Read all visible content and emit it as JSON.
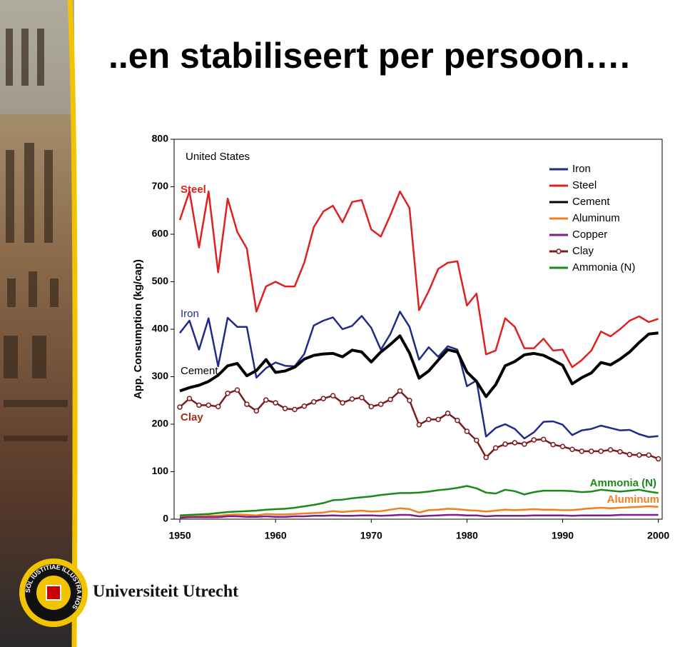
{
  "header": {
    "title": "..en stabiliseert per persoon…."
  },
  "logo": {
    "name": "Universiteit Utrecht",
    "seal_text": "SOL IUSTITIAE ILLUSTRA NOS"
  },
  "chart_data": {
    "type": "line",
    "ylabel": "App. Consumption (kg/cap)",
    "x": [
      1950,
      1951,
      1952,
      1953,
      1954,
      1955,
      1956,
      1957,
      1958,
      1959,
      1960,
      1961,
      1962,
      1963,
      1964,
      1965,
      1966,
      1967,
      1968,
      1969,
      1970,
      1971,
      1972,
      1973,
      1974,
      1975,
      1976,
      1977,
      1978,
      1979,
      1980,
      1981,
      1982,
      1983,
      1984,
      1985,
      1986,
      1987,
      1988,
      1989,
      1990,
      1991,
      1992,
      1993,
      1994,
      1995,
      1996,
      1997,
      1998,
      1999,
      2000
    ],
    "xlim": [
      1949.4,
      2000.4
    ],
    "xticks": [
      1950,
      1960,
      1970,
      1980,
      1990,
      2000
    ],
    "ylim": [
      0,
      800
    ],
    "yticks": [
      0,
      100,
      200,
      300,
      400,
      500,
      600,
      700,
      800
    ],
    "legend": "upper right",
    "series": [
      {
        "name": "Iron",
        "color": "#1f2a8a",
        "values": [
          392,
          418,
          357,
          423,
          322,
          424,
          405,
          405,
          298,
          318,
          330,
          323,
          322,
          348,
          408,
          418,
          425,
          400,
          407,
          428,
          403,
          357,
          390,
          437,
          405,
          336,
          362,
          342,
          364,
          357,
          280,
          292,
          174,
          192,
          200,
          190,
          170,
          183,
          205,
          206,
          199,
          177,
          187,
          190,
          197,
          192,
          187,
          188,
          179,
          173,
          175
        ]
      },
      {
        "name": "Steel",
        "color": "#e02020",
        "values": [
          630,
          690,
          572,
          690,
          520,
          675,
          605,
          570,
          437,
          490,
          500,
          490,
          490,
          540,
          615,
          648,
          660,
          625,
          668,
          672,
          610,
          595,
          640,
          690,
          655,
          440,
          480,
          527,
          540,
          543,
          450,
          475,
          347,
          355,
          423,
          405,
          360,
          360,
          380,
          355,
          357,
          320,
          335,
          355,
          395,
          385,
          400,
          418,
          427,
          415,
          422
        ]
      },
      {
        "name": "Cement",
        "color": "#000000",
        "values": [
          270,
          277,
          282,
          290,
          303,
          323,
          328,
          302,
          313,
          336,
          309,
          312,
          320,
          337,
          345,
          348,
          349,
          342,
          356,
          352,
          331,
          352,
          368,
          386,
          350,
          297,
          312,
          335,
          357,
          352,
          310,
          290,
          258,
          283,
          323,
          332,
          346,
          349,
          345,
          335,
          324,
          285,
          298,
          308,
          330,
          325,
          337,
          352,
          372,
          390,
          392
        ]
      },
      {
        "name": "Aluminum",
        "color": "#f07f20",
        "values": [
          5,
          6,
          6,
          7,
          7,
          9,
          10,
          9,
          8,
          11,
          10,
          10,
          11,
          12,
          13,
          14,
          17,
          15,
          17,
          18,
          16,
          17,
          20,
          23,
          21,
          14,
          19,
          20,
          22,
          21,
          19,
          18,
          16,
          18,
          20,
          19,
          20,
          21,
          20,
          20,
          19,
          19,
          21,
          23,
          24,
          23,
          24,
          25,
          26,
          27,
          26
        ]
      },
      {
        "name": "Copper",
        "color": "#7b1f8a",
        "values": [
          3,
          4,
          4,
          4,
          4,
          6,
          6,
          5,
          5,
          6,
          5,
          5,
          6,
          6,
          7,
          7,
          8,
          7,
          7,
          8,
          8,
          7,
          8,
          9,
          9,
          6,
          7,
          8,
          9,
          9,
          8,
          8,
          6,
          7,
          7,
          7,
          7,
          8,
          8,
          8,
          8,
          7,
          8,
          8,
          8,
          8,
          9,
          9,
          9,
          9,
          9
        ]
      },
      {
        "name": "Clay",
        "color": "#7b1a1a",
        "marker": "circle",
        "values": [
          236,
          254,
          240,
          240,
          237,
          265,
          272,
          242,
          228,
          251,
          245,
          233,
          231,
          238,
          247,
          254,
          260,
          245,
          253,
          256,
          237,
          242,
          252,
          270,
          250,
          199,
          210,
          210,
          223,
          208,
          185,
          166,
          130,
          150,
          158,
          161,
          158,
          167,
          168,
          157,
          153,
          147,
          143,
          143,
          143,
          146,
          142,
          136,
          135,
          135,
          127
        ]
      },
      {
        "name": "Ammonia (N)",
        "color": "#1a8a1a",
        "values": [
          8,
          9,
          10,
          11,
          13,
          15,
          16,
          17,
          18,
          20,
          21,
          22,
          24,
          27,
          30,
          34,
          40,
          41,
          44,
          46,
          48,
          51,
          53,
          55,
          55,
          56,
          58,
          61,
          63,
          66,
          70,
          65,
          56,
          54,
          62,
          59,
          52,
          57,
          60,
          60,
          60,
          59,
          57,
          58,
          62,
          60,
          58,
          60,
          62,
          58,
          55
        ]
      }
    ],
    "annotations": [
      {
        "text": "United States",
        "color": "#000000"
      },
      {
        "text": "Steel",
        "color": "#e02020"
      },
      {
        "text": "Iron",
        "color": "#1f2a8a"
      },
      {
        "text": "Cement",
        "color": "#000000"
      },
      {
        "text": "Clay",
        "color": "#a0301a"
      },
      {
        "text": "Ammonia (N)",
        "color": "#1a8a1a"
      },
      {
        "text": "Aluminum",
        "color": "#f07f20"
      }
    ]
  }
}
